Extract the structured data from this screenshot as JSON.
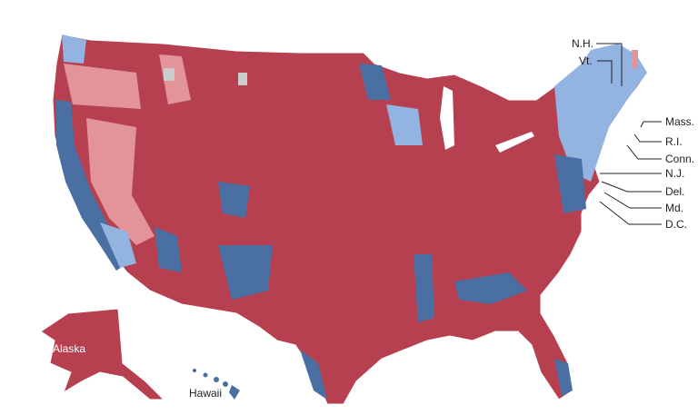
{
  "map": {
    "colors": {
      "strong_red": "#b6404f",
      "light_red": "#e3949a",
      "strong_blue": "#4a6fa3",
      "light_blue": "#93b3e0",
      "no_data": "#cccccc",
      "border": "#ffffff"
    },
    "state_labels": [
      "N.H.",
      "Vt.",
      "Mass.",
      "R.I.",
      "Conn.",
      "N.J.",
      "Del.",
      "Md.",
      "D.C."
    ],
    "inset_labels": {
      "alaska": "Alaska",
      "hawaii": "Hawaii"
    }
  }
}
